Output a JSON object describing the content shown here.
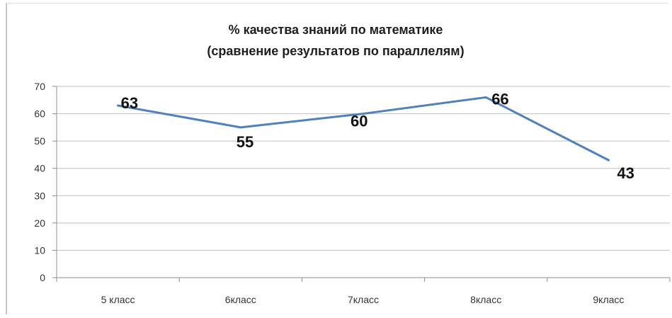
{
  "chart_data": {
    "type": "line",
    "title_lines": [
      "% качества знаний по математике",
      "(сравнение результатов по параллелям)"
    ],
    "categories": [
      "5 класс",
      "6класс",
      "7класс",
      "8класс",
      "9класс"
    ],
    "series": [
      {
        "values": [
          63,
          55,
          60,
          66,
          43
        ],
        "color": "#4f81bd"
      }
    ],
    "data_labels": [
      "63",
      "55",
      "60",
      "66",
      "43"
    ],
    "y_ticks": [
      "0",
      "10",
      "20",
      "30",
      "40",
      "50",
      "60",
      "70"
    ],
    "ylim": [
      0,
      70
    ],
    "grid": true,
    "legend": "none"
  }
}
